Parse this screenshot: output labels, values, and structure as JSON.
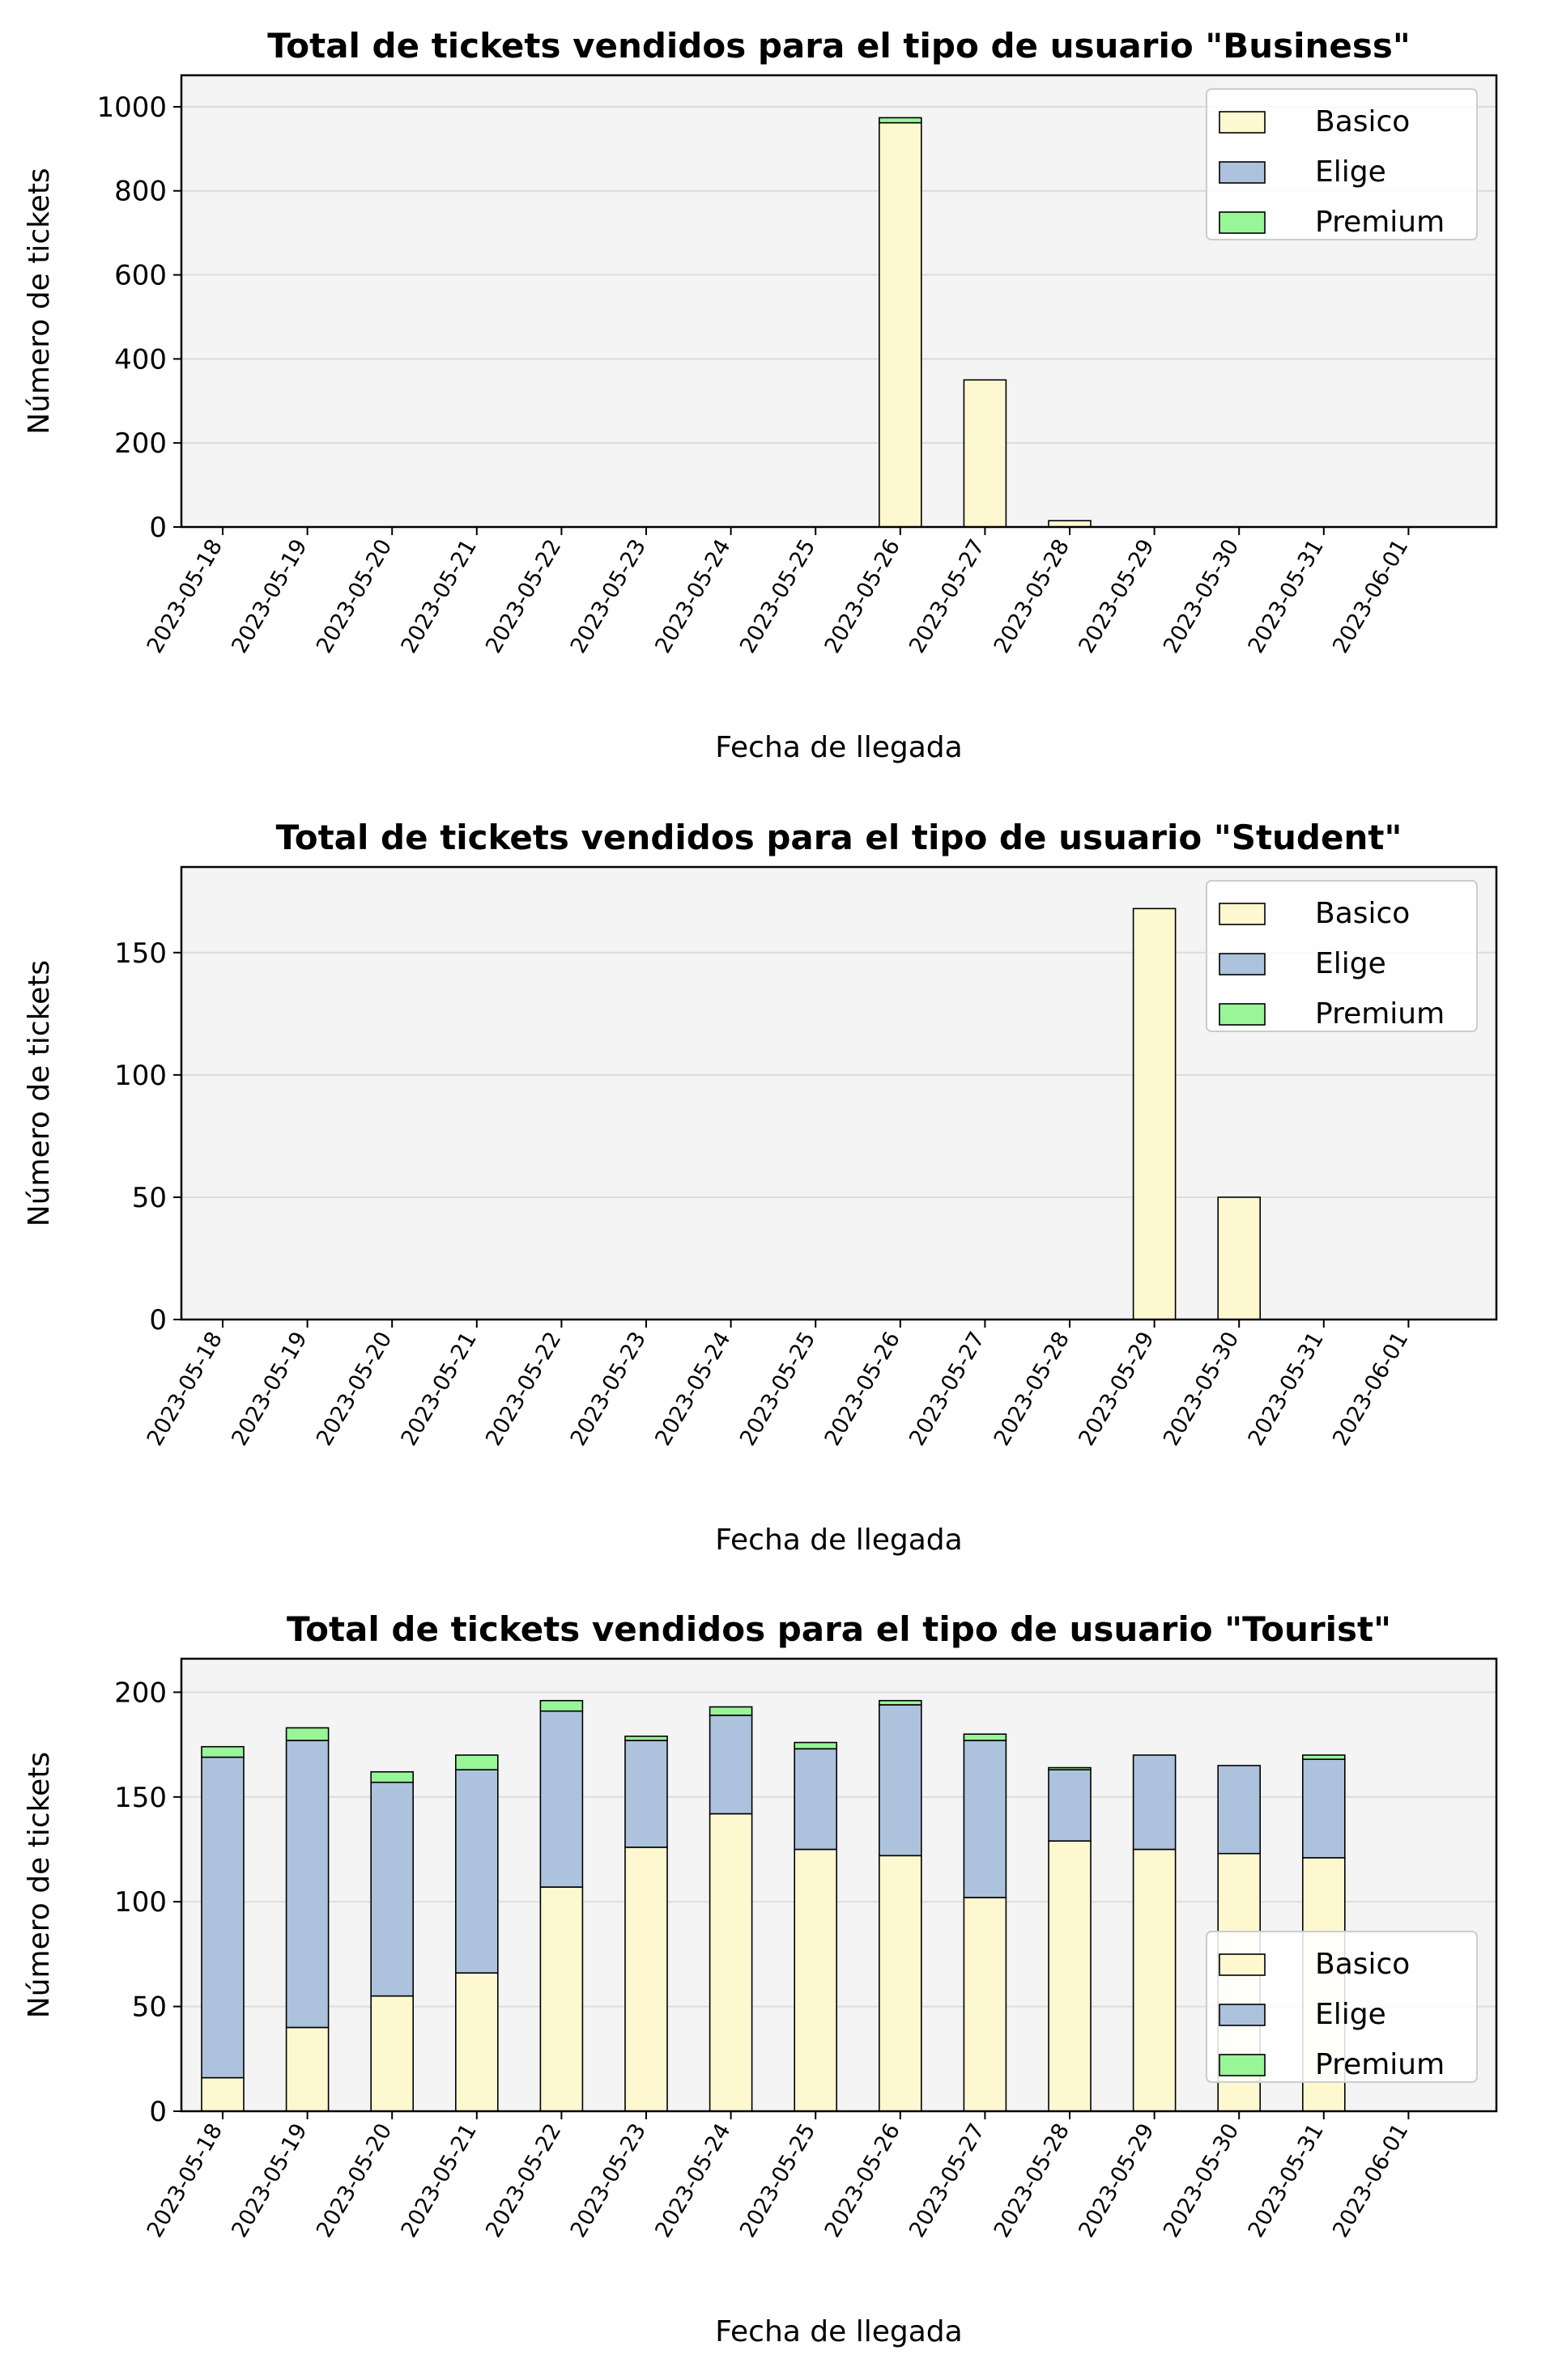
{
  "chart_data": [
    {
      "type": "bar",
      "stacked": true,
      "title": "Total de tickets vendidos para el tipo de usuario \"Business\"",
      "xlabel": "Fecha de llegada",
      "ylabel": "Número de tickets",
      "ylim": [
        0,
        1075
      ],
      "yticks": [
        0,
        200,
        400,
        600,
        800,
        1000
      ],
      "grid": true,
      "legend_position": "upper right",
      "categories": [
        "2023-05-18",
        "2023-05-19",
        "2023-05-20",
        "2023-05-21",
        "2023-05-22",
        "2023-05-23",
        "2023-05-24",
        "2023-05-25",
        "2023-05-26",
        "2023-05-27",
        "2023-05-28",
        "2023-05-29",
        "2023-05-30",
        "2023-05-31",
        "2023-06-01"
      ],
      "series": [
        {
          "name": "Basico",
          "color": "#fdf8d0",
          "values": [
            0,
            0,
            0,
            0,
            0,
            0,
            0,
            0,
            962,
            350,
            15,
            0,
            0,
            0,
            0
          ]
        },
        {
          "name": "Elige",
          "color": "#adc2dc",
          "values": [
            0,
            0,
            0,
            0,
            0,
            0,
            0,
            0,
            0,
            0,
            0,
            0,
            0,
            0,
            0
          ]
        },
        {
          "name": "Premium",
          "color": "#98f598",
          "values": [
            0,
            0,
            0,
            0,
            0,
            0,
            0,
            0,
            12,
            0,
            0,
            0,
            0,
            0,
            0
          ]
        }
      ]
    },
    {
      "type": "bar",
      "stacked": true,
      "title": "Total de tickets vendidos para el tipo de usuario \"Student\"",
      "xlabel": "Fecha de llegada",
      "ylabel": "Número de tickets",
      "ylim": [
        0,
        185
      ],
      "yticks": [
        0,
        50,
        100,
        150
      ],
      "grid": true,
      "legend_position": "upper right",
      "categories": [
        "2023-05-18",
        "2023-05-19",
        "2023-05-20",
        "2023-05-21",
        "2023-05-22",
        "2023-05-23",
        "2023-05-24",
        "2023-05-25",
        "2023-05-26",
        "2023-05-27",
        "2023-05-28",
        "2023-05-29",
        "2023-05-30",
        "2023-05-31",
        "2023-06-01"
      ],
      "series": [
        {
          "name": "Basico",
          "color": "#fdf8d0",
          "values": [
            0,
            0,
            0,
            0,
            0,
            0,
            0,
            0,
            0,
            0,
            0,
            168,
            50,
            0,
            0
          ]
        },
        {
          "name": "Elige",
          "color": "#adc2dc",
          "values": [
            0,
            0,
            0,
            0,
            0,
            0,
            0,
            0,
            0,
            0,
            0,
            0,
            0,
            0,
            0
          ]
        },
        {
          "name": "Premium",
          "color": "#98f598",
          "values": [
            0,
            0,
            0,
            0,
            0,
            0,
            0,
            0,
            0,
            0,
            0,
            0,
            0,
            0,
            0
          ]
        }
      ]
    },
    {
      "type": "bar",
      "stacked": true,
      "title": "Total de tickets vendidos para el tipo de usuario \"Tourist\"",
      "xlabel": "Fecha de llegada",
      "ylabel": "Número de tickets",
      "ylim": [
        0,
        216
      ],
      "yticks": [
        0,
        50,
        100,
        150,
        200
      ],
      "grid": true,
      "legend_position": "lower right",
      "categories": [
        "2023-05-18",
        "2023-05-19",
        "2023-05-20",
        "2023-05-21",
        "2023-05-22",
        "2023-05-23",
        "2023-05-24",
        "2023-05-25",
        "2023-05-26",
        "2023-05-27",
        "2023-05-28",
        "2023-05-29",
        "2023-05-30",
        "2023-05-31",
        "2023-06-01"
      ],
      "series": [
        {
          "name": "Basico",
          "color": "#fdf8d0",
          "values": [
            16,
            40,
            55,
            66,
            107,
            126,
            142,
            125,
            122,
            102,
            129,
            125,
            123,
            121,
            0
          ]
        },
        {
          "name": "Elige",
          "color": "#adc2dc",
          "values": [
            153,
            137,
            102,
            97,
            84,
            51,
            47,
            48,
            72,
            75,
            34,
            45,
            42,
            47,
            0
          ]
        },
        {
          "name": "Premium",
          "color": "#98f598",
          "values": [
            5,
            6,
            5,
            7,
            5,
            2,
            4,
            3,
            2,
            3,
            1,
            0,
            0,
            2,
            0
          ]
        }
      ]
    }
  ]
}
